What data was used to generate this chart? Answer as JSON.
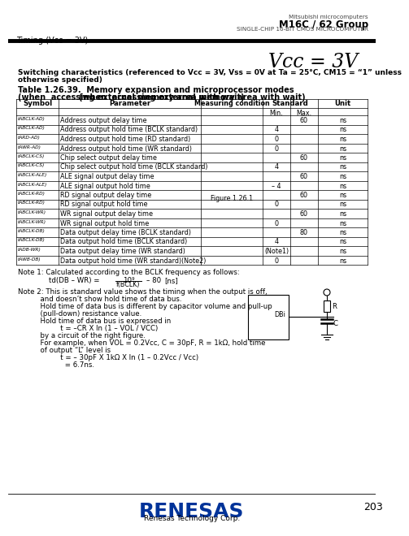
{
  "header_left": "Timing (Vcc = 3V)",
  "header_right_line1": "Mitsubishi microcomputers",
  "header_right_line2": "M16C / 62 Group",
  "header_right_line3": "SINGLE-CHIP 16-BIT CMOS MICROCOMPUTER",
  "page_number": "203",
  "title_vcc": "Vcc = 3V",
  "switching_text_1": "Switching characteristics (referenced to Vcc = 3V, Vss = 0V at Ta = 25°C, CM15 = “1” unless",
  "switching_text_2": "otherwise specified)",
  "table_title_line1": "Table 1.26.39.  Memory expansion and microprocessor modes",
  "table_title_line2": "(when  accessing external memory area with wait)",
  "rows": [
    [
      "tABCLK-AD)",
      "Address output delay time",
      "",
      "",
      "60",
      "ns"
    ],
    [
      "tABCLK-AD)",
      "Address output hold time (BCLK standard)",
      "",
      "4",
      "",
      "ns"
    ],
    [
      "tARD-AD)",
      "Address output hold time (RD standard)",
      "",
      "0",
      "",
      "ns"
    ],
    [
      "tAWR-AD)",
      "Address output hold time (WR standard)",
      "",
      "0",
      "",
      "ns"
    ],
    [
      "tABCLK-CS)",
      "Chip select output delay time",
      "",
      "",
      "60",
      "ns"
    ],
    [
      "tABCLK-CS)",
      "Chip select output hold time (BCLK standard)",
      "",
      "4",
      "",
      "ns"
    ],
    [
      "tABCLK-ALE)",
      "ALE signal output delay time",
      "",
      "",
      "60",
      "ns"
    ],
    [
      "tABCLK-ALE)",
      "ALE signal output hold time",
      "",
      "– 4",
      "",
      "ns"
    ],
    [
      "tABCLK-RD)",
      "RD signal output delay time",
      "Figure 1.26.1",
      "",
      "60",
      "ns"
    ],
    [
      "tABCLK-RD)",
      "RD signal output hold time",
      "",
      "0",
      "",
      "ns"
    ],
    [
      "tABCLK-WR)",
      "WR signal output delay time",
      "",
      "",
      "60",
      "ns"
    ],
    [
      "tABCLK-WR)",
      "WR signal output hold time",
      "",
      "0",
      "",
      "ns"
    ],
    [
      "tABCLK-DB)",
      "Data output delay time (BCLK standard)",
      "",
      "",
      "80",
      "ns"
    ],
    [
      "tABCLK-DB)",
      "Data output hold time (BCLK standard)",
      "",
      "4",
      "",
      "ns"
    ],
    [
      "tADB-WR)",
      "Data output delay time (WR standard)",
      "",
      "(Note1)",
      "",
      "ns"
    ],
    [
      "tAWB-DB)",
      "Data output hold time (WR standard)(Note2)",
      "",
      "0",
      "",
      "ns"
    ]
  ],
  "note1_line": "Note 1: Calculated according to the BCLK frequency as follows:",
  "note2_lines": [
    "Note 2: This is standard value shows the timing when the output is off,",
    "          and doesn’t show hold time of data bus.",
    "          Hold time of data bus is different by capacitor volume and pull-up",
    "          (pull-down) resistance value.",
    "          Hold time of data bus is expressed in",
    "                   t = –CR X ln (1 – VOL / VCC)",
    "          by a circuit of the right figure.",
    "          For example, when VOL = 0.2Vcc, C = 30pF, R = 1kΩ, hold time",
    "          of output “L” level is",
    "                   t = – 30pF X 1kΩ X ln (1 – 0.2Vcc / Vcc)",
    "                     = 6.7ns."
  ],
  "logo_text": "RENESAS",
  "logo_sub": "Renesas Technology Corp.",
  "bg_color": "#ffffff"
}
